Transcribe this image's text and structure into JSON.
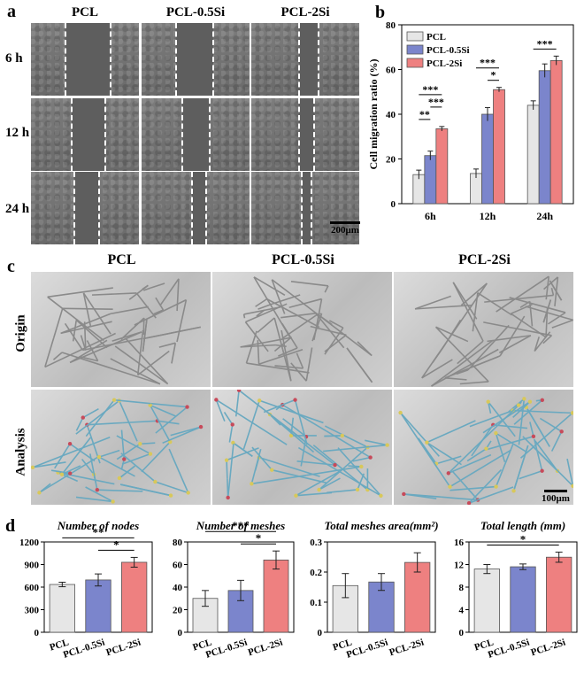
{
  "panel_a": {
    "letter": "a",
    "columns": [
      "PCL",
      "PCL-0.5Si",
      "PCL-2Si"
    ],
    "rows": [
      "6 h",
      "12 h",
      "24 h"
    ],
    "scale": "200μm"
  },
  "panel_c": {
    "letter": "c",
    "columns": [
      "PCL",
      "PCL-0.5Si",
      "PCL-2Si"
    ],
    "rows": [
      "Origin",
      "Analysis"
    ],
    "scale": "100μm"
  },
  "colors": {
    "PCL": "#e6e6e6",
    "PCL-0.5Si": "#7b85cc",
    "PCL-2Si": "#ee8080"
  },
  "chart_data": [
    {
      "id": "b",
      "letter": "b",
      "type": "bar",
      "title": "",
      "ylabel": "Cell migration ratio (%)",
      "xlabel": "",
      "categories": [
        "6h",
        "12h",
        "24h"
      ],
      "ylim": [
        0,
        80
      ],
      "yticks": [
        0,
        20,
        40,
        60,
        80
      ],
      "legend": [
        "PCL",
        "PCL-0.5Si",
        "PCL-2Si"
      ],
      "legend_position": "top-left",
      "series": [
        {
          "name": "PCL",
          "values": [
            13,
            13.5,
            44
          ],
          "errors": [
            2,
            2,
            2
          ]
        },
        {
          "name": "PCL-0.5Si",
          "values": [
            21.5,
            40,
            59.5
          ],
          "errors": [
            2,
            3,
            3
          ]
        },
        {
          "name": "PCL-2Si",
          "values": [
            33.5,
            51,
            64
          ],
          "errors": [
            1,
            1,
            2
          ]
        }
      ],
      "significance": [
        {
          "group": 0,
          "from": 0,
          "to": 1,
          "label": "**"
        },
        {
          "group": 0,
          "from": 1,
          "to": 2,
          "label": "***"
        },
        {
          "group": 0,
          "from": 0,
          "to": 2,
          "label": "***"
        },
        {
          "group": 1,
          "from": 1,
          "to": 2,
          "label": "*"
        },
        {
          "group": 1,
          "from": 0,
          "to": 2,
          "label": "***"
        },
        {
          "group": 2,
          "from": 0,
          "to": 2,
          "label": "***"
        }
      ]
    },
    {
      "id": "d1",
      "letter": "d",
      "type": "bar",
      "title": "Number of nodes",
      "ylabel": "",
      "xlabel": "",
      "categories": [
        "PCL",
        "PCL-0.5Si",
        "PCL-2Si"
      ],
      "values": [
        635,
        695,
        930
      ],
      "errors": [
        30,
        80,
        65
      ],
      "ylim": [
        0,
        1200
      ],
      "yticks": [
        0,
        300,
        600,
        900,
        1200
      ],
      "significance": [
        {
          "from": 1,
          "to": 2,
          "label": "*"
        },
        {
          "from": 0,
          "to": 2,
          "label": "**"
        }
      ]
    },
    {
      "id": "d2",
      "type": "bar",
      "title": "Number of meshes",
      "ylabel": "",
      "xlabel": "",
      "categories": [
        "PCL",
        "PCL-0.5Si",
        "PCL-2Si"
      ],
      "values": [
        30,
        37,
        64
      ],
      "errors": [
        7,
        9,
        8
      ],
      "ylim": [
        0,
        80
      ],
      "yticks": [
        0,
        20,
        40,
        60,
        80
      ],
      "significance": [
        {
          "from": 1,
          "to": 2,
          "label": "*"
        },
        {
          "from": 0,
          "to": 2,
          "label": "***"
        }
      ]
    },
    {
      "id": "d3",
      "type": "bar",
      "title": "Total meshes area(mm²)",
      "ylabel": "",
      "xlabel": "",
      "categories": [
        "PCL",
        "PCL-0.5Si",
        "PCL-2Si"
      ],
      "values": [
        0.155,
        0.167,
        0.232
      ],
      "errors": [
        0.04,
        0.028,
        0.032
      ],
      "ylim": [
        0,
        0.3
      ],
      "yticks": [
        0,
        0.1,
        0.2,
        0.3
      ],
      "significance": []
    },
    {
      "id": "d4",
      "type": "bar",
      "title": "Total length (mm)",
      "ylabel": "",
      "xlabel": "",
      "categories": [
        "PCL",
        "PCL-0.5Si",
        "PCL-2Si"
      ],
      "values": [
        11.2,
        11.6,
        13.3
      ],
      "errors": [
        0.8,
        0.5,
        0.9
      ],
      "ylim": [
        0,
        16
      ],
      "yticks": [
        0,
        4,
        8,
        12,
        16
      ],
      "significance": [
        {
          "from": 0,
          "to": 2,
          "label": "*"
        }
      ]
    }
  ]
}
